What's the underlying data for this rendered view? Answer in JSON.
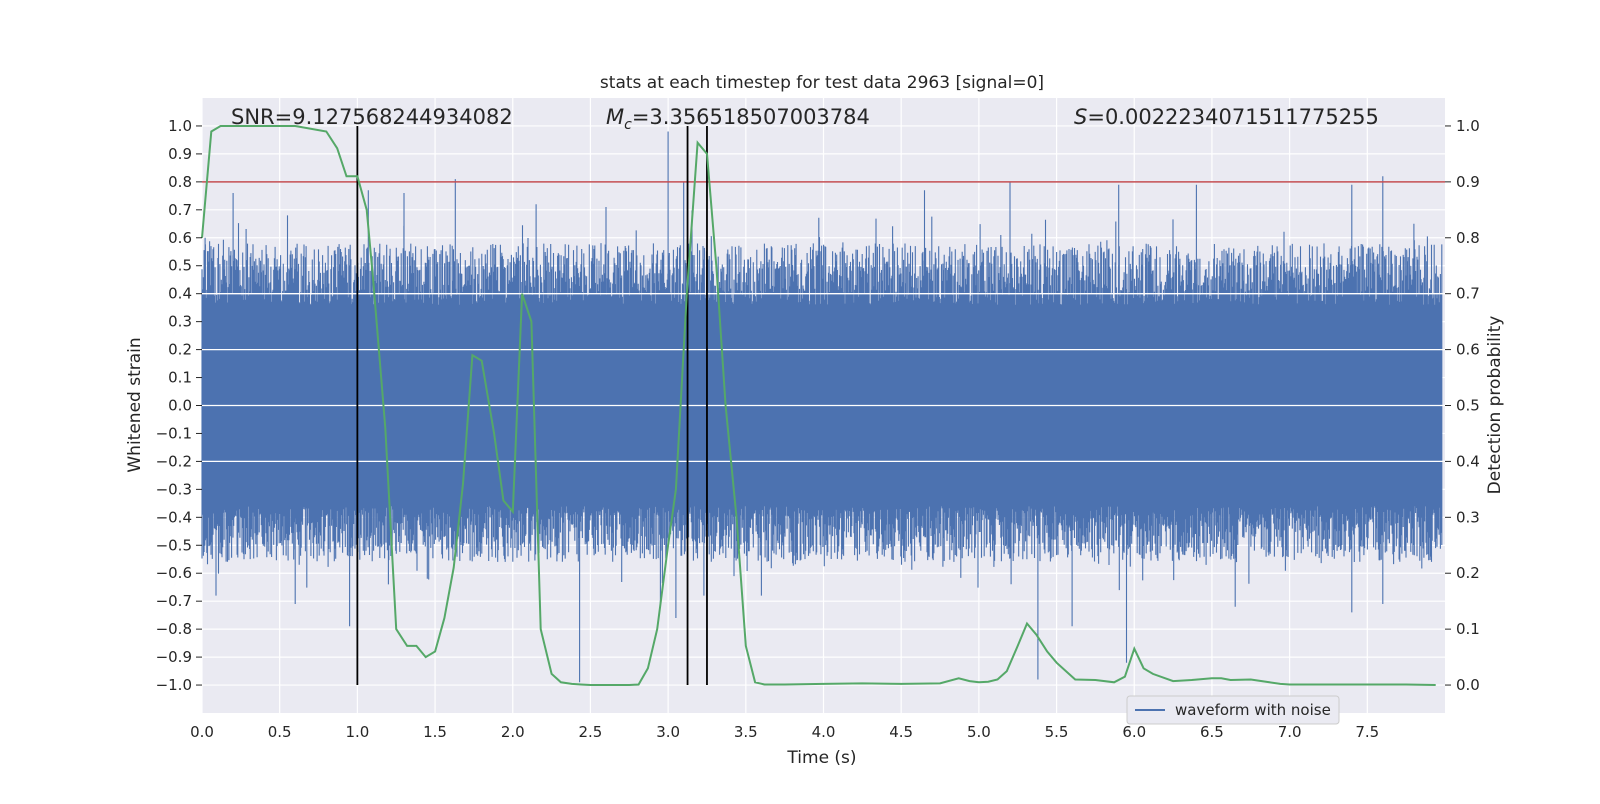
{
  "chart_data": {
    "type": "line",
    "title": "stats at each timestep for test data 2963 [signal=0]",
    "xlabel": "Time (s)",
    "ylabel": "Whitened strain",
    "y2label": "Detection probability",
    "xlim": [
      0.0,
      8.0
    ],
    "ylim": [
      -1.1,
      1.1
    ],
    "y2lim": [
      -0.05,
      1.05
    ],
    "xticks": [
      "0.0",
      "0.5",
      "1.0",
      "1.5",
      "2.0",
      "2.5",
      "3.0",
      "3.5",
      "4.0",
      "4.5",
      "5.0",
      "5.5",
      "6.0",
      "6.5",
      "7.0",
      "7.5"
    ],
    "yticks": [
      "1.0",
      "0.9",
      "0.8",
      "0.7",
      "0.6",
      "0.5",
      "0.4",
      "0.3",
      "0.2",
      "0.1",
      "0.0",
      "−0.1",
      "−0.2",
      "−0.3",
      "−0.4",
      "−0.5",
      "−0.6",
      "−0.7",
      "−0.8",
      "−0.9",
      "−1.0"
    ],
    "y2ticks": [
      "1.0",
      "0.9",
      "0.8",
      "0.7",
      "0.6",
      "0.5",
      "0.4",
      "0.3",
      "0.2",
      "0.1",
      "0.0"
    ],
    "grid": true,
    "legend": {
      "placement": "lower-right",
      "entries": [
        "waveform with noise"
      ]
    },
    "annotations": {
      "snr": "SNR=9.127568244934082",
      "mc_symbol": "M",
      "mc_sub": "c",
      "mc_value": "=3.356518507003784",
      "s_symbol": "S",
      "s_value": "=0.0022234071511775255"
    },
    "threshold": {
      "y2": 0.9,
      "color": "#c44e52"
    },
    "vlines": [
      1.0,
      3.125,
      3.25
    ],
    "colors": {
      "strain": "#4c72b0",
      "probability": "#55a868",
      "threshold": "#c44e52",
      "vline": "#000000",
      "bg": "#eaeaf2"
    },
    "series": [
      {
        "name": "waveform with noise",
        "type": "strain-envelope",
        "note_is_noise": true,
        "upper_peaks": [
          [
            0.02,
            0.6
          ],
          [
            0.2,
            0.76
          ],
          [
            0.55,
            0.68
          ],
          [
            1.07,
            0.77
          ],
          [
            1.3,
            0.76
          ],
          [
            1.63,
            0.81
          ],
          [
            2.15,
            0.72
          ],
          [
            2.6,
            0.71
          ],
          [
            3.0,
            0.98
          ],
          [
            3.1,
            0.8
          ],
          [
            4.65,
            0.77
          ],
          [
            5.2,
            0.8
          ],
          [
            5.9,
            0.79
          ],
          [
            6.4,
            0.79
          ],
          [
            7.4,
            0.79
          ],
          [
            7.6,
            0.82
          ],
          [
            7.8,
            0.65
          ]
        ],
        "lower_peaks": [
          [
            0.09,
            -0.68
          ],
          [
            0.6,
            -0.71
          ],
          [
            0.95,
            -0.79
          ],
          [
            1.2,
            -0.64
          ],
          [
            1.45,
            -0.62
          ],
          [
            2.43,
            -0.99
          ],
          [
            2.95,
            -0.72
          ],
          [
            3.05,
            -0.76
          ],
          [
            3.23,
            -0.68
          ],
          [
            3.6,
            -0.68
          ],
          [
            5.38,
            -0.98
          ],
          [
            5.6,
            -0.79
          ],
          [
            5.95,
            -0.92
          ],
          [
            6.65,
            -0.72
          ],
          [
            7.4,
            -0.74
          ],
          [
            7.6,
            -0.71
          ]
        ]
      },
      {
        "name": "",
        "axis": "y2",
        "type": "line",
        "x": [
          0.0,
          0.06,
          0.12,
          0.25,
          0.4,
          0.6,
          0.8,
          0.87,
          0.93,
          1.0,
          1.06,
          1.1,
          1.18,
          1.25,
          1.32,
          1.38,
          1.44,
          1.5,
          1.56,
          1.62,
          1.68,
          1.74,
          1.8,
          1.88,
          1.94,
          2.0,
          2.06,
          2.12,
          2.18,
          2.25,
          2.31,
          2.38,
          2.44,
          2.5,
          2.62,
          2.75,
          2.81,
          2.87,
          2.93,
          3.0,
          3.05,
          3.12,
          3.19,
          3.25,
          3.31,
          3.37,
          3.44,
          3.5,
          3.56,
          3.62,
          3.75,
          4.0,
          4.25,
          4.5,
          4.75,
          4.87,
          4.94,
          5.0,
          5.06,
          5.12,
          5.18,
          5.25,
          5.31,
          5.37,
          5.44,
          5.5,
          5.56,
          5.62,
          5.75,
          5.87,
          5.94,
          6.0,
          6.06,
          6.12,
          6.25,
          6.37,
          6.5,
          6.56,
          6.62,
          6.75,
          6.87,
          6.94,
          7.0,
          7.12,
          7.25,
          7.5,
          7.75,
          7.94
        ],
        "values": [
          0.8,
          0.99,
          1.0,
          1.0,
          1.0,
          1.0,
          0.99,
          0.96,
          0.91,
          0.91,
          0.85,
          0.73,
          0.46,
          0.1,
          0.07,
          0.07,
          0.05,
          0.06,
          0.12,
          0.21,
          0.36,
          0.59,
          0.58,
          0.45,
          0.33,
          0.31,
          0.7,
          0.65,
          0.1,
          0.02,
          0.005,
          0.002,
          0.001,
          0.0,
          0.0,
          0.0,
          0.001,
          0.03,
          0.1,
          0.25,
          0.35,
          0.7,
          0.97,
          0.95,
          0.75,
          0.5,
          0.3,
          0.07,
          0.005,
          0.001,
          0.001,
          0.002,
          0.003,
          0.002,
          0.003,
          0.012,
          0.007,
          0.005,
          0.006,
          0.01,
          0.025,
          0.07,
          0.11,
          0.09,
          0.06,
          0.04,
          0.025,
          0.01,
          0.009,
          0.005,
          0.015,
          0.065,
          0.03,
          0.02,
          0.007,
          0.009,
          0.012,
          0.012,
          0.009,
          0.01,
          0.005,
          0.002,
          0.001,
          0.001,
          0.001,
          0.001,
          0.001,
          0.0
        ]
      }
    ]
  }
}
